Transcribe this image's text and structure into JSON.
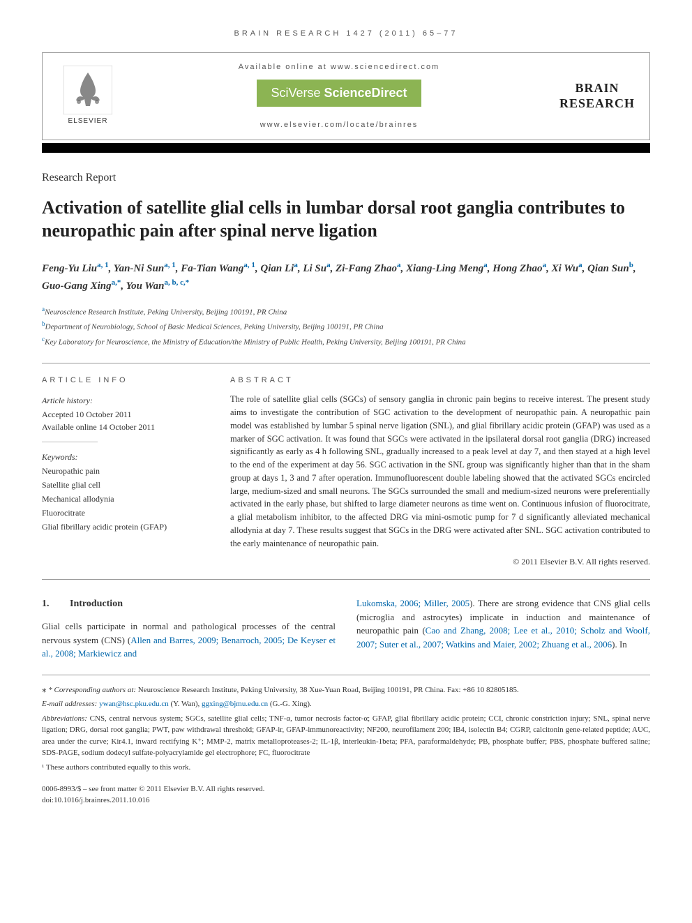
{
  "header": {
    "citation": "BRAIN RESEARCH 1427 (2011) 65–77",
    "available_text": "Available online at www.sciencedirect.com",
    "sciverse_brand_light": "SciVerse ",
    "sciverse_brand_bold": "ScienceDirect",
    "locate_text": "www.elsevier.com/locate/brainres",
    "publisher_name": "ELSEVIER",
    "journal_line1": "BRAIN",
    "journal_line2": "RESEARCH"
  },
  "article": {
    "type": "Research Report",
    "title": "Activation of satellite glial cells in lumbar dorsal root ganglia contributes to neuropathic pain after spinal nerve ligation",
    "authors_html": "Feng-Yu Liu<sup>a, 1</sup>, Yan-Ni Sun<sup>a, 1</sup>, Fa-Tian Wang<sup>a, 1</sup>, Qian Li<sup>a</sup>, Li Su<sup>a</sup>, Zi-Fang Zhao<sup>a</sup>, Xiang-Ling Meng<sup>a</sup>, Hong Zhao<sup>a</sup>, Xi Wu<sup>a</sup>, Qian Sun<sup>b</sup>, Guo-Gang Xing<sup>a,*</sup>, You Wan<sup>a, b, c,*</sup>",
    "affiliations": [
      {
        "sup": "a",
        "text": "Neuroscience Research Institute, Peking University, Beijing 100191, PR China"
      },
      {
        "sup": "b",
        "text": "Department of Neurobiology, School of Basic Medical Sciences, Peking University, Beijing 100191, PR China"
      },
      {
        "sup": "c",
        "text": "Key Laboratory for Neuroscience, the Ministry of Education/the Ministry of Public Health, Peking University, Beijing 100191, PR China"
      }
    ]
  },
  "article_info": {
    "heading": "ARTICLE INFO",
    "history_label": "Article history:",
    "accepted": "Accepted 10 October 2011",
    "online": "Available online 14 October 2011",
    "keywords_label": "Keywords:",
    "keywords": [
      "Neuropathic pain",
      "Satellite glial cell",
      "Mechanical allodynia",
      "Fluorocitrate",
      "Glial fibrillary acidic protein (GFAP)"
    ]
  },
  "abstract": {
    "heading": "ABSTRACT",
    "text": "The role of satellite glial cells (SGCs) of sensory ganglia in chronic pain begins to receive interest. The present study aims to investigate the contribution of SGC activation to the development of neuropathic pain. A neuropathic pain model was established by lumbar 5 spinal nerve ligation (SNL), and glial fibrillary acidic protein (GFAP) was used as a marker of SGC activation. It was found that SGCs were activated in the ipsilateral dorsal root ganglia (DRG) increased significantly as early as 4 h following SNL, gradually increased to a peak level at day 7, and then stayed at a high level to the end of the experiment at day 56. SGC activation in the SNL group was significantly higher than that in the sham group at days 1, 3 and 7 after operation. Immunofluorescent double labeling showed that the activated SGCs encircled large, medium-sized and small neurons. The SGCs surrounded the small and medium-sized neurons were preferentially activated in the early phase, but shifted to large diameter neurons as time went on. Continuous infusion of fluorocitrate, a glial metabolism inhibitor, to the affected DRG via mini-osmotic pump for 7 d significantly alleviated mechanical allodynia at day 7. These results suggest that SGCs in the DRG were activated after SNL. SGC activation contributed to the early maintenance of neuropathic pain.",
    "copyright": "© 2011 Elsevier B.V. All rights reserved."
  },
  "body": {
    "section_num": "1.",
    "section_title": "Introduction",
    "col1_text_pre": "Glial cells participate in normal and pathological processes of the central nervous system (CNS) (",
    "col1_link": "Allen and Barres, 2009; Benarroch, 2005; De Keyser et al., 2008; Markiewicz and",
    "col2_link1": "Lukomska, 2006; Miller, 2005",
    "col2_text_mid1": "). There are strong evidence that CNS glial cells (microglia and astrocytes) implicate in induction and maintenance of neuropathic pain (",
    "col2_link2": "Cao and Zhang, 2008; Lee et al., 2010; Scholz and Woolf, 2007; Suter et al., 2007; Watkins and Maier, 2002; Zhuang et al., 2006",
    "col2_text_mid2": "). In"
  },
  "footnotes": {
    "corr_label": "* Corresponding authors at:",
    "corr_text": " Neuroscience Research Institute, Peking University, 38 Xue-Yuan Road, Beijing 100191, PR China. Fax: +86 10 82805185.",
    "email_label": "E-mail addresses:",
    "email1": "ywan@hsc.pku.edu.cn",
    "email1_name": " (Y. Wan), ",
    "email2": "ggxing@bjmu.edu.cn",
    "email2_name": " (G.-G. Xing).",
    "abbrev_label": "Abbreviations:",
    "abbrev_text": " CNS, central nervous system; SGCs, satellite glial cells; TNF-α, tumor necrosis factor-α; GFAP, glial fibrillary acidic protein; CCI, chronic constriction injury; SNL, spinal nerve ligation; DRG, dorsal root ganglia; PWT, paw withdrawal threshold; GFAP-ir, GFAP-immunoreactivity; NF200, neurofilament 200; IB4, isolectin B4; CGRP, calcitonin gene-related peptide; AUC, area under the curve; Kir4.1, inward rectifying K⁺; MMP-2, matrix metalloproteases-2; IL-1β, interleukin-1beta; PFA, paraformaldehyde; PB, phosphate buffer; PBS, phosphate buffered saline; SDS-PAGE, sodium dodecyl sulfate-polyacrylamide gel electrophore; FC, fluorocitrate",
    "contrib_label": "¹",
    "contrib_text": " These authors contributed equally to this work."
  },
  "footer": {
    "line1": "0006-8993/$ – see front matter © 2011 Elsevier B.V. All rights reserved.",
    "line2": "doi:10.1016/j.brainres.2011.10.016"
  },
  "colors": {
    "sciverse_green": "#8cb453",
    "link_blue": "#0066aa",
    "text_gray": "#555555"
  }
}
